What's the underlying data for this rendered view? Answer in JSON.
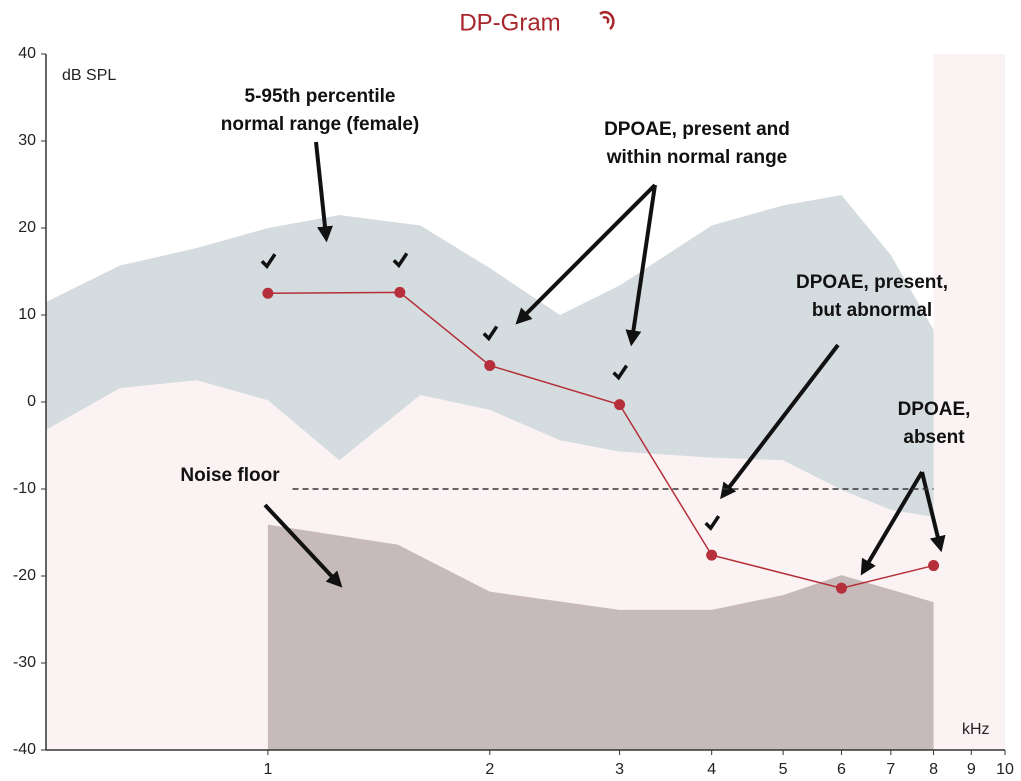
{
  "chart_data": {
    "type": "line",
    "title": "DP-Gram",
    "y_label": "dB SPL",
    "x_label": "kHz",
    "log_x": true,
    "xlim": [
      0.5,
      10
    ],
    "xticks": [
      1,
      2,
      3,
      4,
      5,
      6,
      7,
      8,
      9,
      10
    ],
    "ylim": [
      -40,
      40
    ],
    "yticks": [
      -40,
      -30,
      -20,
      -10,
      0,
      10,
      20,
      30,
      40
    ],
    "grid": false,
    "series": [
      {
        "name": "DPOAE",
        "color": "#b5303a",
        "x": [
          1,
          1.51,
          2,
          3,
          4,
          6,
          8
        ],
        "values": [
          12.5,
          12.6,
          4.2,
          -0.3,
          -17.6,
          -21.4,
          -18.8
        ],
        "checked": [
          true,
          true,
          true,
          true,
          true,
          false,
          false
        ]
      }
    ],
    "normal_range": {
      "color": "#d5dcdf",
      "x": [
        0.5,
        0.63,
        0.8,
        1,
        1.25,
        1.61,
        2,
        2.49,
        3,
        4,
        5,
        6,
        7,
        8
      ],
      "upper": [
        11.5,
        15.7,
        17.7,
        20,
        21.5,
        20.3,
        15.4,
        10,
        13.4,
        20.3,
        22.6,
        23.8,
        16.9,
        8.3
      ],
      "lower": [
        -3.2,
        1.6,
        2.5,
        0.2,
        -6.7,
        0.8,
        -0.9,
        -4.4,
        -5.7,
        -6.4,
        -6.7,
        -10.1,
        -12.4,
        -13.2
      ]
    },
    "noise_floor": {
      "color": "#c6baba",
      "x": [
        1,
        1.5,
        2,
        3,
        4,
        5,
        6,
        8
      ],
      "values": [
        -14.1,
        -16.4,
        -21.8,
        -23.9,
        -23.9,
        -22.2,
        -19.9,
        -23
      ],
      "line": {
        "y": -10,
        "x": [
          1.08,
          8
        ]
      }
    },
    "annotations": [
      {
        "lines": [
          "5-95th percentile",
          "normal  range (female)"
        ]
      },
      {
        "lines": [
          "DPOAE, present and",
          "within normal range"
        ]
      },
      {
        "lines": [
          "DPOAE, present,",
          "but abnormal"
        ]
      },
      {
        "lines": [
          "DPOAE,",
          "absent"
        ]
      },
      {
        "lines": [
          "Noise floor"
        ]
      }
    ]
  }
}
